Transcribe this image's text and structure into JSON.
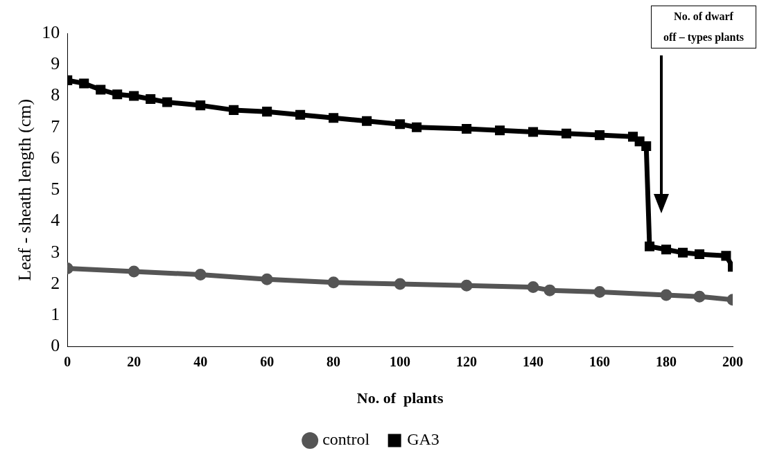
{
  "chart_data": {
    "type": "line",
    "xlabel": "No. of  plants",
    "ylabel": "Leaf - sheath length (cm)",
    "xlim": [
      0,
      200
    ],
    "xticks": [
      0,
      20,
      40,
      60,
      80,
      100,
      120,
      140,
      160,
      180,
      200
    ],
    "ylim": [
      0,
      10
    ],
    "yticks": [
      0,
      1,
      2,
      3,
      4,
      5,
      6,
      7,
      8,
      9,
      10
    ],
    "grid": false,
    "legend": "bottom",
    "annotations": [
      "No. of dwarf\noff – types plants"
    ],
    "series": [
      {
        "name": "control",
        "color": "#555555",
        "marker": "circle",
        "x": [
          0,
          20,
          40,
          60,
          80,
          100,
          120,
          140,
          145,
          160,
          180,
          190,
          200
        ],
        "values": [
          2.5,
          2.4,
          2.3,
          2.15,
          2.05,
          2.0,
          1.95,
          1.9,
          1.8,
          1.75,
          1.65,
          1.6,
          1.5
        ]
      },
      {
        "name": "GA3",
        "color": "#000000",
        "marker": "square",
        "x": [
          0,
          5,
          10,
          15,
          20,
          25,
          30,
          40,
          50,
          60,
          70,
          80,
          90,
          100,
          105,
          120,
          130,
          140,
          150,
          160,
          170,
          172,
          174,
          175,
          180,
          185,
          190,
          198,
          200
        ],
        "values": [
          8.5,
          8.4,
          8.2,
          8.05,
          8.0,
          7.9,
          7.8,
          7.7,
          7.55,
          7.5,
          7.4,
          7.3,
          7.2,
          7.1,
          7.0,
          6.95,
          6.9,
          6.85,
          6.8,
          6.75,
          6.7,
          6.55,
          6.4,
          3.2,
          3.1,
          3.0,
          2.95,
          2.9,
          2.55
        ]
      }
    ]
  }
}
